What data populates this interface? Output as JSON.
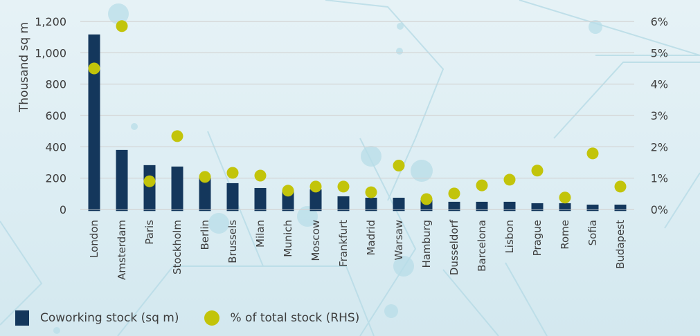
{
  "chart_data": {
    "type": "bar",
    "title": "",
    "xlabel": "",
    "ylabel": "Thousand sq m",
    "ylim": [
      0,
      1200
    ],
    "y_ticks": [
      "0",
      "200",
      "400",
      "600",
      "800",
      "1,000",
      "1,200"
    ],
    "y2lim": [
      0,
      6
    ],
    "y2_ticks": [
      "0%",
      "1%",
      "2%",
      "3%",
      "4%",
      "5%",
      "6%"
    ],
    "grid": true,
    "legend_position": "bottom-left",
    "categories": [
      "London",
      "Amsterdam",
      "Paris",
      "Stockholm",
      "Berlin",
      "Brussels",
      "Milan",
      "Munich",
      "Moscow",
      "Frankfurt",
      "Madrid",
      "Warsaw",
      "Hamburg",
      "Dusseldorf",
      "Barcelona",
      "Lisbon",
      "Prague",
      "Rome",
      "Sofia",
      "Budapest"
    ],
    "series": [
      {
        "name": "Coworking stock (sq m)",
        "type": "bar",
        "axis": "left",
        "color": "#14375c",
        "values": [
          1117,
          380,
          283,
          274,
          203,
          168,
          137,
          124,
          128,
          84,
          75,
          75,
          62,
          49,
          49,
          49,
          40,
          40,
          31,
          31
        ]
      },
      {
        "name": "% of total stock (RHS)",
        "type": "scatter",
        "axis": "right",
        "color": "#c2c40a",
        "values": [
          4.5,
          5.85,
          0.9,
          2.34,
          1.04,
          1.17,
          1.08,
          0.6,
          0.73,
          0.73,
          0.55,
          1.4,
          0.33,
          0.51,
          0.77,
          0.95,
          1.24,
          0.38,
          1.79,
          0.73
        ]
      }
    ]
  },
  "legend": {
    "bar_label": "Coworking stock (sq m)",
    "dot_label": "% of total stock (RHS)"
  }
}
